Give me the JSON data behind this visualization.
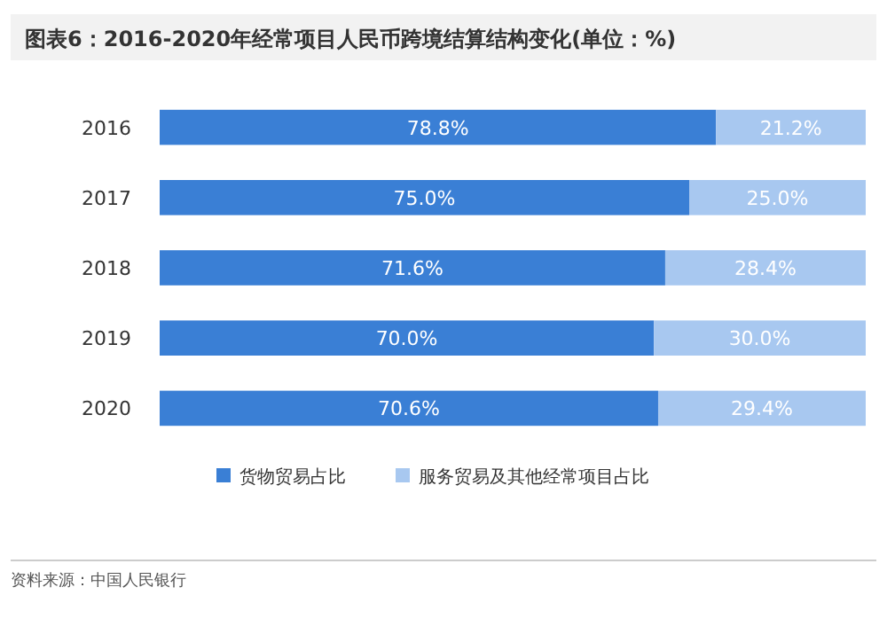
{
  "chart_data": {
    "type": "bar",
    "orientation": "horizontal",
    "stacked": true,
    "title": "图表6：2016-2020年经常项目人民币跨境结算结构变化(单位：%)",
    "categories": [
      "2016",
      "2017",
      "2018",
      "2019",
      "2020"
    ],
    "series": [
      {
        "name": "货物贸易占比",
        "color": "#3a7fd5",
        "values": [
          78.8,
          75.0,
          71.6,
          70.0,
          70.6
        ],
        "value_labels": [
          "78.8%",
          "75.0%",
          "71.6%",
          "70.0%",
          "70.6%"
        ]
      },
      {
        "name": "服务贸易及其他经常项目占比",
        "color": "#a8c8f0",
        "values": [
          21.2,
          25.0,
          28.4,
          30.0,
          29.4
        ],
        "value_labels": [
          "21.2%",
          "25.0%",
          "28.4%",
          "30.0%",
          "29.4%"
        ]
      }
    ],
    "legend": "bottom",
    "annotations": [
      "资料来源：中国人民银行"
    ]
  }
}
